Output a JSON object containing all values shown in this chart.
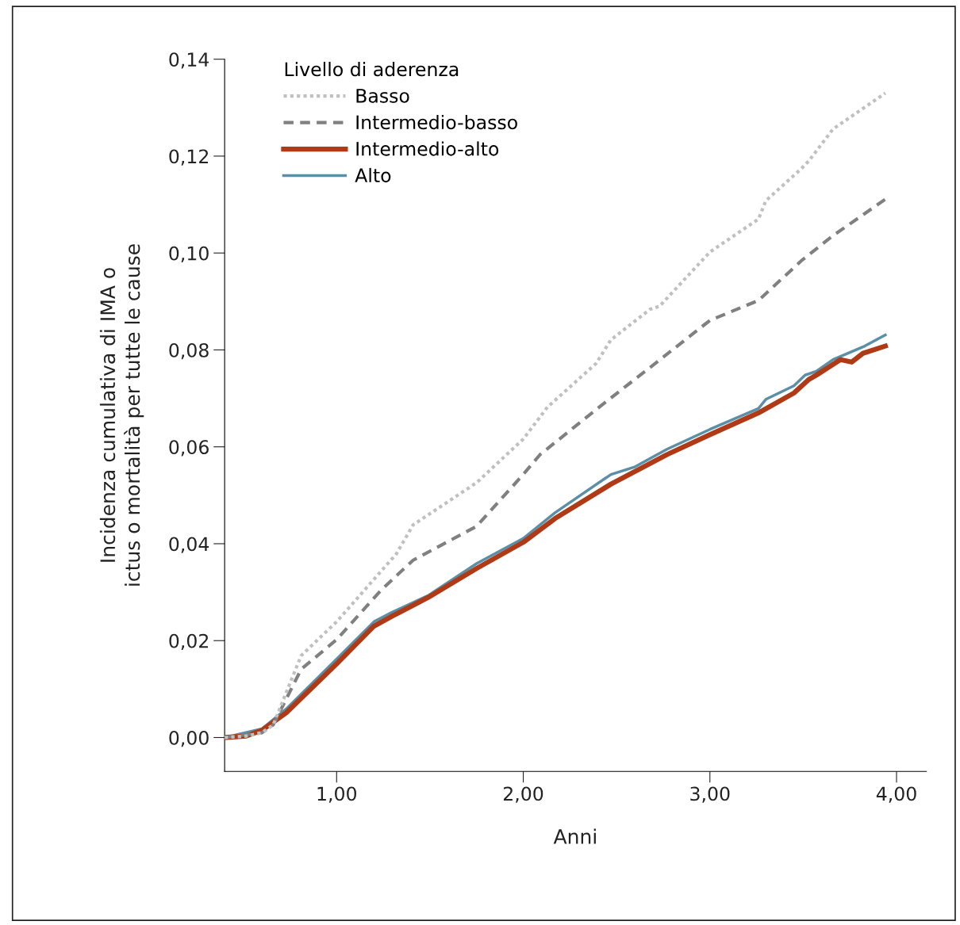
{
  "chart_data": {
    "type": "line",
    "xlabel": "Anni",
    "ylabel": "Incidenza cumulativa di IMA o\nictus o mortalità per tutte le cause",
    "legend_title": "Livello di aderenza",
    "legend": "top left",
    "grid": false,
    "marker": "none",
    "xlim": [
      0.4,
      4.16
    ],
    "ylim": [
      -0.007,
      0.14
    ],
    "xticks": [
      {
        "value": 1,
        "label": "1,00"
      },
      {
        "value": 2,
        "label": "2,00"
      },
      {
        "value": 3,
        "label": "3,00"
      },
      {
        "value": 4,
        "label": "4,00"
      }
    ],
    "yticks": [
      {
        "value": 0,
        "label": "0,00"
      },
      {
        "value": 0.02,
        "label": "0,02"
      },
      {
        "value": 0.04,
        "label": "0,04"
      },
      {
        "value": 0.06,
        "label": "0,06"
      },
      {
        "value": 0.08,
        "label": "0,08"
      },
      {
        "value": 0.1,
        "label": "0,10"
      },
      {
        "value": 0.12,
        "label": "0,12"
      },
      {
        "value": 0.14,
        "label": "0,14"
      }
    ],
    "series": [
      {
        "name": "Basso",
        "color": "#c0c0c0",
        "line_style": "dotted",
        "x": [
          0.4,
          0.515,
          0.6,
          0.66,
          0.81,
          1.0,
          1.32,
          1.41,
          1.75,
          2.0,
          2.13,
          2.39,
          2.47,
          2.68,
          2.73,
          3.0,
          3.26,
          3.3,
          3.49,
          3.53,
          3.66,
          3.94
        ],
        "values": [
          0,
          0.0003,
          0.001,
          0.0026,
          0.0169,
          0.0239,
          0.0379,
          0.0439,
          0.0526,
          0.0616,
          0.0682,
          0.0772,
          0.0821,
          0.0884,
          0.089,
          0.1002,
          0.107,
          0.1108,
          0.1174,
          0.119,
          0.1256,
          0.133
        ]
      },
      {
        "name": "Intermedio-basso",
        "color": "#808080",
        "line_style": "dashed",
        "x": [
          0.4,
          0.6,
          0.66,
          0.81,
          1.0,
          1.24,
          1.41,
          1.75,
          2.0,
          2.09,
          2.43,
          2.73,
          3.0,
          3.26,
          3.49,
          3.66,
          3.94
        ],
        "values": [
          0,
          0.001,
          0.0026,
          0.0141,
          0.0202,
          0.0305,
          0.0366,
          0.0436,
          0.0543,
          0.0584,
          0.0689,
          0.0779,
          0.0861,
          0.0902,
          0.0984,
          0.1036,
          0.1111
        ]
      },
      {
        "name": "Intermedio-alto",
        "color": "#b03a15",
        "line_style": "solid",
        "x": [
          0.4,
          0.515,
          0.6,
          0.73,
          1.0,
          1.2,
          1.3,
          1.49,
          1.75,
          2.0,
          2.17,
          2.47,
          2.77,
          3.0,
          3.26,
          3.45,
          3.53,
          3.57,
          3.7,
          3.76,
          3.82,
          3.94
        ],
        "values": [
          0,
          0.0003,
          0.0015,
          0.0051,
          0.0152,
          0.023,
          0.0251,
          0.0289,
          0.0349,
          0.0403,
          0.0452,
          0.0523,
          0.0584,
          0.0625,
          0.067,
          0.0711,
          0.0739,
          0.0748,
          0.078,
          0.0775,
          0.0793,
          0.0808
        ]
      },
      {
        "name": "Alto",
        "color": "#5b8fa8",
        "line_style": "solid",
        "x": [
          0.4,
          0.6,
          0.73,
          1.0,
          1.2,
          1.3,
          1.49,
          1.75,
          2.0,
          2.17,
          2.47,
          2.6,
          2.77,
          3.0,
          3.26,
          3.3,
          3.45,
          3.51,
          3.57,
          3.66,
          3.83,
          3.94
        ],
        "values": [
          0,
          0.0018,
          0.0059,
          0.0162,
          0.0239,
          0.0259,
          0.0293,
          0.0359,
          0.0411,
          0.0464,
          0.0543,
          0.0559,
          0.0595,
          0.0636,
          0.0679,
          0.0698,
          0.0726,
          0.0748,
          0.0756,
          0.078,
          0.0808,
          0.0831
        ]
      }
    ]
  }
}
